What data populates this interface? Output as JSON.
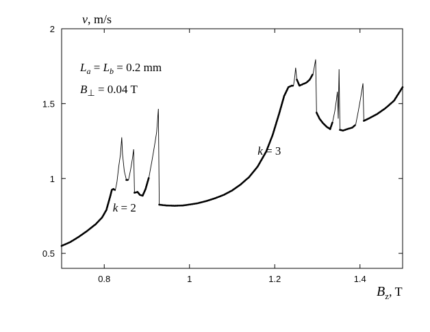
{
  "chart_data": {
    "type": "line",
    "xlabel": {
      "symbol": "B",
      "sub": "z",
      "unit": ", T"
    },
    "ylabel": {
      "symbol": "v",
      "unit": ", m/s"
    },
    "xlim": [
      0.7,
      1.5
    ],
    "ylim": [
      0.4,
      2.0
    ],
    "xticks": [
      0.8,
      1.0,
      1.2,
      1.4
    ],
    "xtick_labels": [
      "0.8",
      "1",
      "1.2",
      "1.4"
    ],
    "yticks": [
      0.5,
      1.0,
      1.5,
      2.0
    ],
    "ytick_labels": [
      "0.5",
      "1",
      "1.5",
      "2"
    ],
    "grid": false,
    "annotations": {
      "params_line1": {
        "L": "L",
        "a": "a",
        "eq1": " = ",
        "L2": "L",
        "b": "b",
        "rest": " = 0.2 mm"
      },
      "params_line2": {
        "B": "B",
        "perp": "⊥",
        "rest": " = 0.04 T"
      },
      "k2": {
        "k": "k",
        "rest": " = 2",
        "x": 0.82,
        "y": 0.78
      },
      "k3": {
        "k": "k",
        "rest": " = 3",
        "x": 1.16,
        "y": 1.16
      }
    },
    "series": [
      {
        "points": [
          [
            0.7,
            0.55
          ],
          [
            0.72,
            0.575
          ],
          [
            0.74,
            0.61
          ],
          [
            0.76,
            0.65
          ],
          [
            0.78,
            0.695
          ],
          [
            0.795,
            0.74
          ],
          [
            0.805,
            0.79
          ],
          [
            0.812,
            0.86
          ],
          [
            0.818,
            0.925
          ],
          [
            0.822,
            0.93
          ],
          [
            0.826,
            0.92
          ],
          [
            0.83,
            0.98
          ],
          [
            0.834,
            1.08
          ],
          [
            0.838,
            1.16
          ],
          [
            0.841,
            1.275
          ],
          [
            0.843,
            1.16
          ],
          [
            0.847,
            1.05
          ],
          [
            0.852,
            0.99
          ],
          [
            0.857,
            0.99
          ],
          [
            0.862,
            1.06
          ],
          [
            0.866,
            1.13
          ],
          [
            0.869,
            1.195
          ],
          [
            0.871,
            0.905
          ],
          [
            0.878,
            0.91
          ],
          [
            0.884,
            0.89
          ],
          [
            0.89,
            0.885
          ],
          [
            0.897,
            0.93
          ],
          [
            0.905,
            1.01
          ],
          [
            0.912,
            1.12
          ],
          [
            0.918,
            1.22
          ],
          [
            0.923,
            1.31
          ],
          [
            0.927,
            1.465
          ],
          [
            0.929,
            0.825
          ],
          [
            0.945,
            0.82
          ],
          [
            0.965,
            0.818
          ],
          [
            0.985,
            0.82
          ],
          [
            1.0,
            0.826
          ],
          [
            1.02,
            0.835
          ],
          [
            1.04,
            0.85
          ],
          [
            1.06,
            0.868
          ],
          [
            1.08,
            0.89
          ],
          [
            1.1,
            0.92
          ],
          [
            1.12,
            0.96
          ],
          [
            1.14,
            1.01
          ],
          [
            1.16,
            1.08
          ],
          [
            1.18,
            1.18
          ],
          [
            1.195,
            1.29
          ],
          [
            1.21,
            1.43
          ],
          [
            1.222,
            1.55
          ],
          [
            1.232,
            1.61
          ],
          [
            1.24,
            1.62
          ],
          [
            1.244,
            1.618
          ],
          [
            1.247,
            1.68
          ],
          [
            1.249,
            1.74
          ],
          [
            1.252,
            1.66
          ],
          [
            1.258,
            1.62
          ],
          [
            1.266,
            1.63
          ],
          [
            1.274,
            1.64
          ],
          [
            1.282,
            1.66
          ],
          [
            1.29,
            1.7
          ],
          [
            1.296,
            1.795
          ],
          [
            1.298,
            1.44
          ],
          [
            1.305,
            1.4
          ],
          [
            1.313,
            1.37
          ],
          [
            1.322,
            1.345
          ],
          [
            1.33,
            1.33
          ],
          [
            1.336,
            1.38
          ],
          [
            1.341,
            1.45
          ],
          [
            1.345,
            1.53
          ],
          [
            1.347,
            1.58
          ],
          [
            1.349,
            1.4
          ],
          [
            1.351,
            1.73
          ],
          [
            1.353,
            1.325
          ],
          [
            1.36,
            1.32
          ],
          [
            1.37,
            1.33
          ],
          [
            1.382,
            1.34
          ],
          [
            1.39,
            1.36
          ],
          [
            1.396,
            1.45
          ],
          [
            1.401,
            1.53
          ],
          [
            1.405,
            1.6
          ],
          [
            1.407,
            1.635
          ],
          [
            1.409,
            1.385
          ],
          [
            1.42,
            1.4
          ],
          [
            1.44,
            1.43
          ],
          [
            1.46,
            1.47
          ],
          [
            1.48,
            1.52
          ],
          [
            1.5,
            1.61
          ]
        ]
      }
    ]
  }
}
